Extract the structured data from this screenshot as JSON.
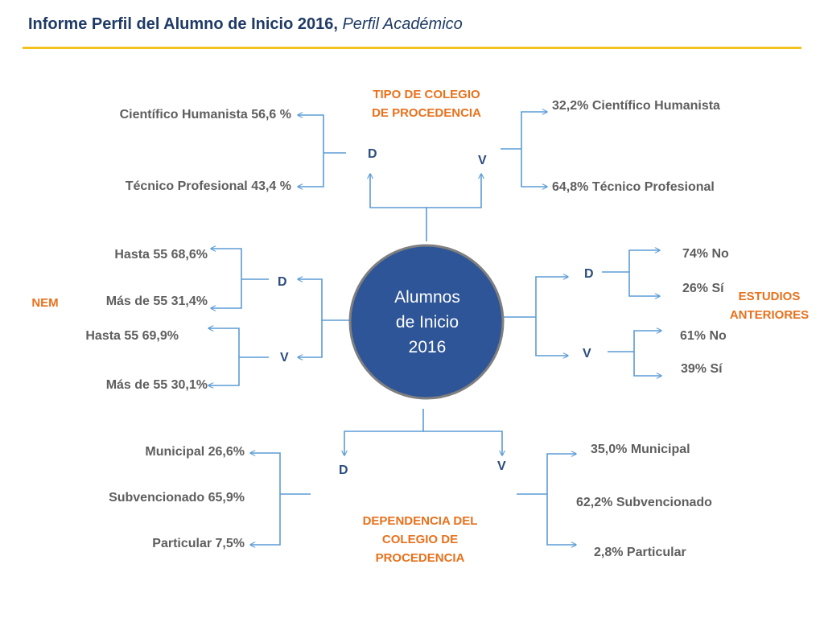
{
  "header": {
    "title": "Informe Perfil del Alumno de Inicio 2016,",
    "subtitle": "Perfil Académico"
  },
  "center": {
    "line1": "Alumnos",
    "line2": "de Inicio",
    "line3": "2016"
  },
  "colors": {
    "title": "#1f3a66",
    "accent_rule": "#f2c11c",
    "center_fill": "#2e5597",
    "center_border": "#7f7f7f",
    "connector": "#5b9bd5",
    "category": "#e8711c",
    "branch_label": "#2b4c7e",
    "value_text": "#5e5e5e"
  },
  "tipo_colegio": {
    "category_line1": "TIPO DE COLEGIO",
    "category_line2": "DE PROCEDENCIA",
    "d_label": "D",
    "v_label": "V",
    "d_items": [
      "Científico Humanista 56,6 %",
      "Técnico Profesional  43,4 %"
    ],
    "v_items": [
      "32,2% Científico Humanista",
      "64,8% Técnico Profesional"
    ]
  },
  "nem": {
    "category": "NEM",
    "d_label": "D",
    "v_label": "V",
    "d_items": [
      "Hasta 55 68,6%",
      "Más de 55 31,4%"
    ],
    "v_items": [
      "Hasta 55  69,9%",
      "Más de 55 30,1%"
    ]
  },
  "estudios_anteriores": {
    "category_line1": "ESTUDIOS",
    "category_line2": "ANTERIORES",
    "d_label": "D",
    "v_label": "V",
    "d_items": [
      "74% No",
      "26% Sí"
    ],
    "v_items": [
      "61% No",
      "39% Sí"
    ]
  },
  "dependencia": {
    "category_line1": "DEPENDENCIA DEL",
    "category_line2": "COLEGIO DE",
    "category_line3": "PROCEDENCIA",
    "d_label": "D",
    "v_label": "V",
    "d_items": [
      "Municipal 26,6%",
      "Subvencionado 65,9%",
      "Particular 7,5%"
    ],
    "v_items": [
      "35,0% Municipal",
      "62,2% Subvencionado",
      "2,8% Particular"
    ]
  }
}
